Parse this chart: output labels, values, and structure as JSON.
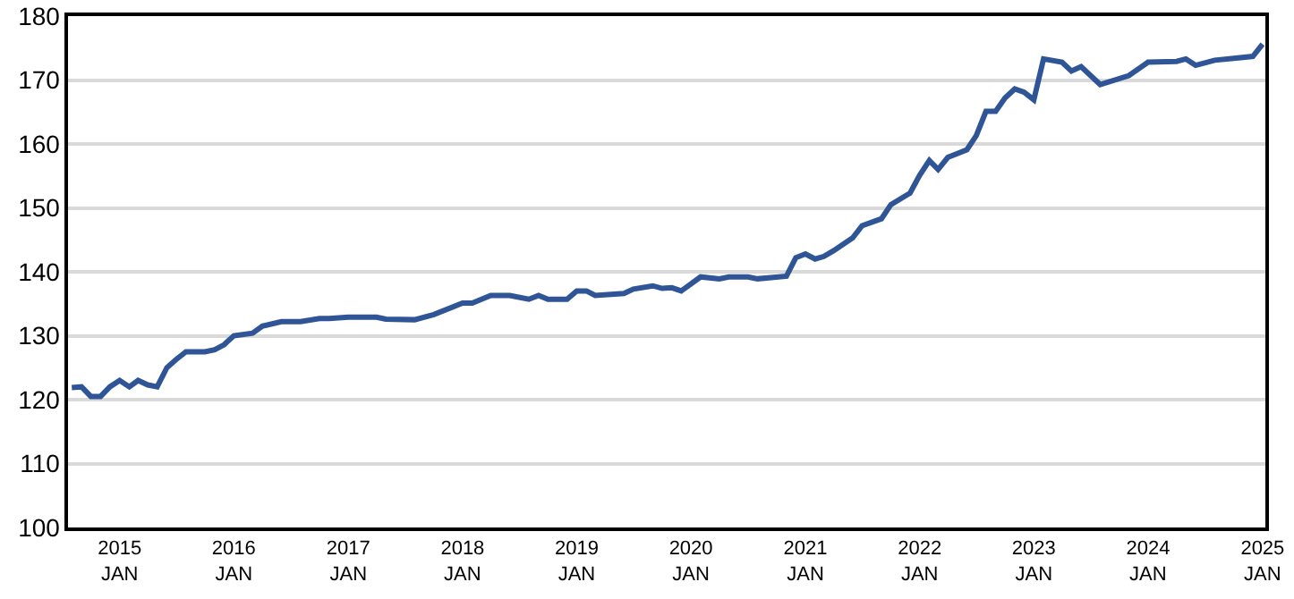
{
  "chart_data": {
    "type": "line",
    "color": "#2f5597",
    "grid": "y",
    "marker": "none",
    "line_style": "solid",
    "x": [
      "2014-08",
      "2014-09",
      "2014-10",
      "2014-11",
      "2014-12",
      "2015-01",
      "2015-02",
      "2015-03",
      "2015-04",
      "2015-05",
      "2015-06",
      "2015-07",
      "2015-08",
      "2015-10",
      "2015-11",
      "2015-12",
      "2016-01",
      "2016-03",
      "2016-04",
      "2016-06",
      "2016-08",
      "2016-10",
      "2016-11",
      "2017-01",
      "2017-04",
      "2017-05",
      "2017-08",
      "2017-10",
      "2018-01",
      "2018-02",
      "2018-04",
      "2018-06",
      "2018-08",
      "2018-09",
      "2018-10",
      "2018-12",
      "2019-01",
      "2019-02",
      "2019-03",
      "2019-06",
      "2019-07",
      "2019-09",
      "2019-10",
      "2019-11",
      "2019-12",
      "2020-02",
      "2020-04",
      "2020-05",
      "2020-07",
      "2020-08",
      "2020-11",
      "2020-12",
      "2021-01",
      "2021-02",
      "2021-03",
      "2021-04",
      "2021-06",
      "2021-07",
      "2021-09",
      "2021-10",
      "2021-12",
      "2022-01",
      "2022-02",
      "2022-03",
      "2022-04",
      "2022-06",
      "2022-07",
      "2022-08",
      "2022-09",
      "2022-10",
      "2022-11",
      "2022-12",
      "2023-01",
      "2023-02",
      "2023-04",
      "2023-05",
      "2023-06",
      "2023-08",
      "2023-11",
      "2024-01",
      "2024-04",
      "2024-05",
      "2024-06",
      "2024-08",
      "2024-10",
      "2024-12",
      "2025-01"
    ],
    "values": [
      121.9,
      122,
      120.5,
      120.5,
      122,
      123,
      122,
      123,
      122.3,
      122,
      125,
      126.3,
      127.5,
      127.5,
      127.8,
      128.6,
      130,
      130.4,
      131.5,
      132.2,
      132.2,
      132.7,
      132.7,
      132.9,
      132.9,
      132.6,
      132.5,
      133.3,
      135.1,
      135.1,
      136.3,
      136.3,
      135.7,
      136.3,
      135.7,
      135.7,
      137,
      137,
      136.3,
      136.6,
      137.3,
      137.8,
      137.4,
      137.5,
      137,
      139.2,
      138.9,
      139.2,
      139.2,
      138.9,
      139.3,
      142.2,
      142.8,
      142,
      142.4,
      143.3,
      145.3,
      147.2,
      148.3,
      150.5,
      152.3,
      155.1,
      157.4,
      156,
      157.9,
      159.1,
      161.3,
      165.1,
      165.1,
      167.2,
      168.6,
      168.1,
      166.9,
      173.3,
      172.8,
      171.4,
      172.1,
      169.3,
      170.7,
      172.8,
      172.9,
      173.3,
      172.3,
      173.1,
      173.4,
      173.7,
      175.6
    ],
    "xlim": [
      "2014-07-20",
      "2025-01-10"
    ],
    "xticks": [
      {
        "value": "2015-01",
        "label": "2015\nJAN"
      },
      {
        "value": "2016-01",
        "label": "2016\nJAN"
      },
      {
        "value": "2017-01",
        "label": "2017\nJAN"
      },
      {
        "value": "2018-01",
        "label": "2018\nJAN"
      },
      {
        "value": "2019-01",
        "label": "2019\nJAN"
      },
      {
        "value": "2020-01",
        "label": "2020\nJAN"
      },
      {
        "value": "2021-01",
        "label": "2021\nJAN"
      },
      {
        "value": "2022-01",
        "label": "2022\nJAN"
      },
      {
        "value": "2023-01",
        "label": "2023\nJAN"
      },
      {
        "value": "2024-01",
        "label": "2024\nJAN"
      },
      {
        "value": "2025-01",
        "label": "2025\nJAN"
      }
    ],
    "ylim": [
      100,
      180
    ],
    "yticks": [
      100,
      110,
      120,
      130,
      140,
      150,
      160,
      170,
      180
    ]
  }
}
